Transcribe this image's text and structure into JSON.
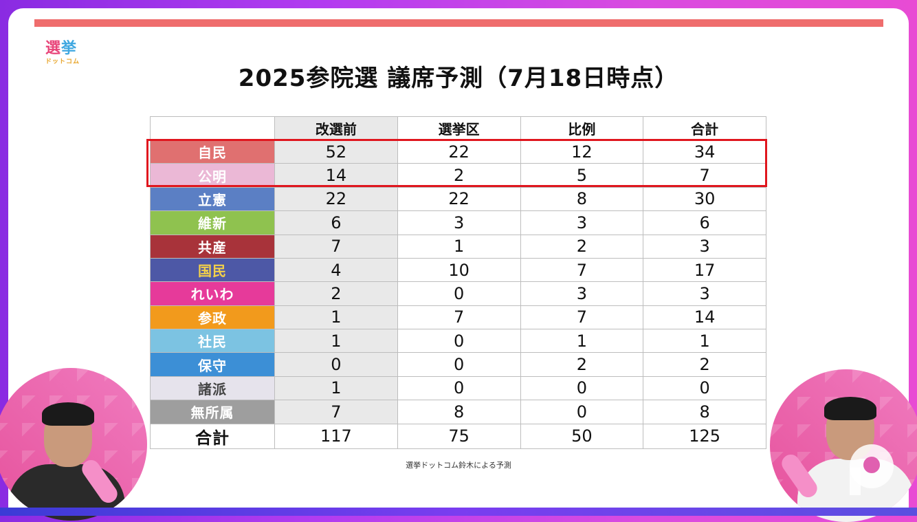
{
  "logo": {
    "line1": [
      "選",
      "挙"
    ],
    "line1_colors": [
      "#e8457a",
      "#3fa7e0"
    ],
    "line2": "ドットコム"
  },
  "title": "2025参院選 議席予測（7月18日時点）",
  "table": {
    "headers": [
      "",
      "改選前",
      "選挙区",
      "比例",
      "合計"
    ],
    "rows": [
      {
        "party": "自民",
        "color": "#e07070",
        "values": [
          "52",
          "22",
          "12",
          "34"
        ],
        "highlighted": true
      },
      {
        "party": "公明",
        "color": "#ebb8d6",
        "values": [
          "14",
          "2",
          "5",
          "7"
        ],
        "highlighted": true
      },
      {
        "party": "立憲",
        "color": "#5b7fc4",
        "values": [
          "22",
          "22",
          "8",
          "30"
        ]
      },
      {
        "party": "維新",
        "color": "#8fc24f",
        "values": [
          "6",
          "3",
          "3",
          "6"
        ]
      },
      {
        "party": "共産",
        "color": "#a8333a",
        "values": [
          "7",
          "1",
          "2",
          "3"
        ]
      },
      {
        "party": "国民",
        "color": "#4d58a6",
        "label_color": "#f3d04a",
        "values": [
          "4",
          "10",
          "7",
          "17"
        ]
      },
      {
        "party": "れいわ",
        "color": "#e63a9a",
        "values": [
          "2",
          "0",
          "3",
          "3"
        ]
      },
      {
        "party": "参政",
        "color": "#f29a1c",
        "values": [
          "1",
          "7",
          "7",
          "14"
        ]
      },
      {
        "party": "社民",
        "color": "#7cc3e2",
        "values": [
          "1",
          "0",
          "1",
          "1"
        ]
      },
      {
        "party": "保守",
        "color": "#3c8fd6",
        "values": [
          "0",
          "0",
          "2",
          "2"
        ]
      },
      {
        "party": "諸派",
        "color": "#e6e3ec",
        "label_color": "#444444",
        "values": [
          "1",
          "0",
          "0",
          "0"
        ]
      },
      {
        "party": "無所属",
        "color": "#9e9e9e",
        "values": [
          "7",
          "8",
          "0",
          "8"
        ]
      }
    ],
    "total": {
      "label": "合計",
      "values": [
        "117",
        "75",
        "50",
        "125"
      ]
    }
  },
  "source": "選挙ドットコム鈴木による予測",
  "colors": {
    "accent_bar": "#ef6d6d",
    "highlight_border": "#e0161e"
  }
}
